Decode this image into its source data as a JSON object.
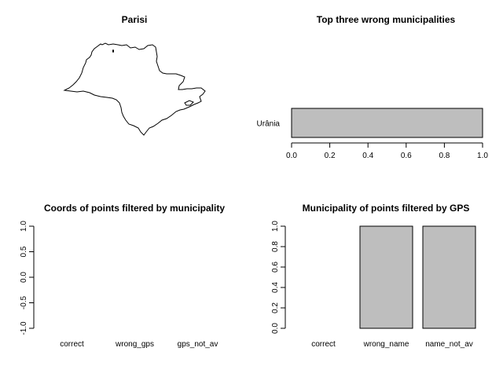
{
  "map_panel": {
    "title": "Parisi"
  },
  "chart_data": [
    {
      "type": "bar",
      "orientation": "horizontal",
      "title": "Top three wrong municipalities",
      "categories": [
        "Urânia"
      ],
      "values": [
        1.0
      ],
      "xlim": [
        0,
        1
      ],
      "xticks": [
        "0.0",
        "0.2",
        "0.4",
        "0.6",
        "0.8",
        "1.0"
      ],
      "bar_color": "#bebebe"
    },
    {
      "type": "bar",
      "title": "Coords of points filtered by municipality",
      "categories": [
        "correct",
        "wrong_gps",
        "gps_not_av"
      ],
      "values": [
        0,
        0,
        0
      ],
      "ylim": [
        -1,
        1
      ],
      "yticks": [
        "-1.0",
        "-0.5",
        "0.0",
        "0.5",
        "1.0"
      ],
      "bar_color": "#bebebe"
    },
    {
      "type": "bar",
      "title": "Municipality of points filtered by GPS",
      "categories": [
        "correct",
        "wrong_name",
        "name_not_av"
      ],
      "values": [
        0,
        1,
        1
      ],
      "ylim": [
        0,
        1
      ],
      "yticks": [
        "0.0",
        "0.2",
        "0.4",
        "0.6",
        "0.8",
        "1.0"
      ],
      "bar_color": "#bebebe"
    }
  ]
}
